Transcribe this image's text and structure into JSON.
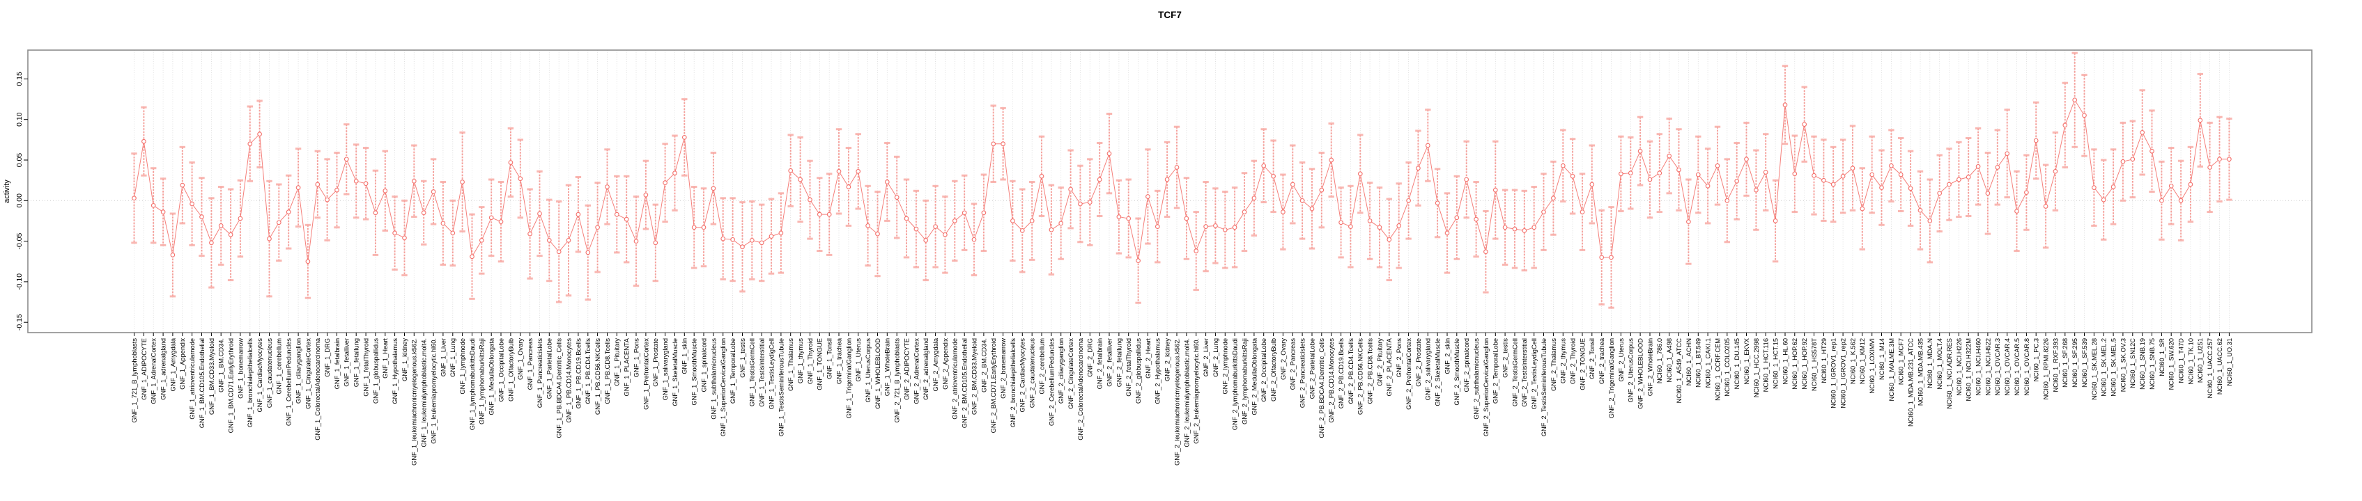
{
  "page": {
    "title": "TCF7"
  },
  "chart_data": {
    "type": "line",
    "title": "TCF7",
    "ylabel": "activity",
    "xlabel": "",
    "ylim": [
      -0.163,
      0.185
    ],
    "ytick_labels": [
      "0.15",
      "0.10",
      "0.05",
      "0.00",
      "-0.05",
      "-0.10",
      "-0.15"
    ],
    "grid": "vertical dotted gridline per category, dotted horizontal line at 0",
    "legend_position": "none",
    "marker": "open-circle with error bars",
    "colors": {
      "series": "#f4716c",
      "error_bar": "#f58a84",
      "error_cap": "#f8aba5",
      "gridline": "#d9d9d9",
      "zero_line": "#c9c9c9",
      "box": "#8c8c8c",
      "tick": "#000000",
      "text": "#000000",
      "background": "#ffffff"
    },
    "categories": [
      "GNF_1_721_B_lymphoblasts",
      "GNF_1_ADIPOCYTE",
      "GNF_1_AdrenalCortex",
      "GNF_1_adrenalgland",
      "GNF_1_Amygdala",
      "GNF_1_Appendix",
      "GNF_1_atrioventricularnode",
      "GNF_1_BM.CD105.Endothelial",
      "GNF_1_BM.CD33.Myeloid",
      "GNF_1_BM.CD34.",
      "GNF_1_BM.CD71.EarlyErythroid",
      "GNF_1_bonemarrow",
      "GNF_1_bronchialepithelialcells",
      "GNF_1_CardiacMyocytes",
      "GNF_1_caudatenucleus",
      "GNF_1_cerebellum",
      "GNF_1_CerebellumPeduncles",
      "GNF_1_ciliaryganglion",
      "GNF_1_CingulateCortex",
      "GNF_1_ColorectalAdenocarcinoma",
      "GNF_1_DRG",
      "GNF_1_fetalbrain",
      "GNF_1_fetalliver",
      "GNF_1_fetallung",
      "GNF_1_fetalThyroid",
      "GNF_1_globuspallidus",
      "GNF_1_Heart",
      "GNF_1_Hypothalamus",
      "GNF_1_kidney",
      "GNF_1_leukemiachronicmyelogenous.k562.",
      "GNF_1_leukemialymphoblastic.molt4.",
      "GNF_1_leukemiapromyelocytic.hl60.",
      "GNF_1_Liver",
      "GNF_1_Lung",
      "GNF_1_lymphnode",
      "GNF_1_lymphomaburkittsDaudi",
      "GNF_1_lymphomaburkittsRaji",
      "GNF_1_MedullaOblongata",
      "GNF_1_OccipitalLobe",
      "GNF_1_OlfactoryBulb",
      "GNF_1_Ovary",
      "GNF_1_Pancreas",
      "GNF_1_Pancreaticislets",
      "GNF_1_ParietalLobe",
      "GNF_1_PB.BDCA4.Dentritic_Cells",
      "GNF_1_PB.CD14.Monocytes",
      "GNF_1_PB.CD19.Bcells",
      "GNF_1_PB.CD4.Tcells",
      "GNF_1_PB.CD56.NKCells",
      "GNF_1_PB.CD8.Tcells",
      "GNF_1_Pituitary",
      "GNF_1_PLACENTA",
      "GNF_1_Pons",
      "GNF_1_PrefrontalCortex",
      "GNF_1_Prostate",
      "GNF_1_salivarygland",
      "GNF_1_SkeletalMuscle",
      "GNF_1_skin",
      "GNF_1_SmoothMuscle",
      "GNF_1_spinalcord",
      "GNF_1_subthalamicnucleus",
      "GNF_1_SuperiorCervicalGanglion",
      "GNF_1_TemporalLobe",
      "GNF_1_testis",
      "GNF_1_TestisGermCell",
      "GNF_1_TestisInterstitial",
      "GNF_1_TestisLeydigCell",
      "GNF_1_TestisSeminiferousTubule",
      "GNF_1_Thalamus",
      "GNF_1_thymus",
      "GNF_1_Thyroid",
      "GNF_1_TONGUE",
      "GNF_1_Tonsil",
      "GNF_1_trachea",
      "GNF_1_TrigeminalGanglion",
      "GNF_1_Uterus",
      "GNF_1_UterusCorpus",
      "GNF_1_WHOLEBLOOD",
      "GNF_1_WholeBrain",
      "GNF_2_721_B_lymphoblasts",
      "GNF_2_ADIPOCYTE",
      "GNF_2_AdrenalCortex",
      "GNF_2_adrenalgland",
      "GNF_2_Amygdala",
      "GNF_2_Appendix",
      "GNF_2_atrioventricularnode",
      "GNF_2_BM.CD105.Endothelial",
      "GNF_2_BM.CD33.Myeloid",
      "GNF_2_BM.CD34.",
      "GNF_2_BM.CD71.EarlyErythroid",
      "GNF_2_bonemarrow",
      "GNF_2_bronchialepithelialcells",
      "GNF_2_CardiacMyocytes",
      "GNF_2_caudatenucleus",
      "GNF_2_cerebellum",
      "GNF_2_CerebellumPeduncles",
      "GNF_2_ciliaryganglion",
      "GNF_2_CingulateCortex",
      "GNF_2_ColorectalAdenocarcinoma",
      "GNF_2_DRG",
      "GNF_2_fetalbrain",
      "GNF_2_fetalliver",
      "GNF_2_fetallung",
      "GNF_2_fetalThyroid",
      "GNF_2_globuspallidus",
      "GNF_2_Heart",
      "GNF_2_Hypothalamus",
      "GNF_2_kidney",
      "GNF_2_leukemiachronicmyelogenous.k562.",
      "GNF_2_leukemialymphoblastic.molt4.",
      "GNF_2_leukemiapromyelocytic.hl60.",
      "GNF_2_Liver",
      "GNF_2_Lung",
      "GNF_2_lymphnode",
      "GNF_2_lymphomaburkittsDaudi",
      "GNF_2_lymphomaburkittsRaji",
      "GNF_2_MedullaOblongata",
      "GNF_2_OccipitalLobe",
      "GNF_2_OlfactoryBulb",
      "GNF_2_Ovary",
      "GNF_2_Pancreas",
      "GNF_2_Pancreaticislets",
      "GNF_2_ParietalLobe",
      "GNF_2_PB.BDCA4.Dentritic_Cells",
      "GNF_2_PB.CD14.Monocytes",
      "GNF_2_PB.CD19.Bcells",
      "GNF_2_PB.CD4.Tcells",
      "GNF_2_PB.CD56.NKCells",
      "GNF_2_PB.CD8.Tcells",
      "GNF_2_Pituitary",
      "GNF_2_PLACENTA",
      "GNF_2_Pons",
      "GNF_2_PrefrontalCortex",
      "GNF_2_Prostate",
      "GNF_2_salivarygland",
      "GNF_2_SkeletalMuscle",
      "GNF_2_skin",
      "GNF_2_SmoothMuscle",
      "GNF_2_spinalcord",
      "GNF_2_subthalamicnucleus",
      "GNF_2_SuperiorCervicalGanglion",
      "GNF_2_TemporalLobe",
      "GNF_2_testis",
      "GNF_2_TestisGermCell",
      "GNF_2_TestisInterstitial",
      "GNF_2_TestisLeydigCell",
      "GNF_2_TestisSeminiferousTubule",
      "GNF_2_Thalamus",
      "GNF_2_thymus",
      "GNF_2_Thyroid",
      "GNF_2_TONGUE",
      "GNF_2_Tonsil",
      "GNF_2_trachea",
      "GNF_2_TrigeminalGanglion",
      "GNF_2_Uterus",
      "GNF_2_UterusCorpus",
      "GNF_2_WHOLEBLOOD",
      "GNF_2_WholeBrain",
      "NCI60_1_786.0",
      "NCI60_1_A498",
      "NCI60_1_A549_ATCC",
      "NCI60_1_ACHN",
      "NCI60_1_BT.549",
      "NCI60_1_CAKI.1",
      "NCI60_1_CCRF.CEM",
      "NCI60_1_COLO205",
      "NCI60_1_DU.145",
      "NCI60_1_EKVX",
      "NCI60_1_HCC.2998",
      "NCI60_1_HCT.116",
      "NCI60_1_HCT.15",
      "NCI60_1_HL.60",
      "NCI60_1_HOP.62",
      "NCI60_1_HOP.92",
      "NCI60_1_HS578T",
      "NCI60_1_HT29",
      "NCI60_1_IGROV1_rep1",
      "NCI60_1_IGROV1_rep2",
      "NCI60_1_K.562",
      "NCI60_1_KM12",
      "NCI60_1_LOXIMVI",
      "NCI60_1_M14",
      "NCI60_1_MALME.3M",
      "NCI60_1_MCF7",
      "NCI60_1_MDA.MB.231_ATCC",
      "NCI60_1_MDA.MB.435",
      "NCI60_1_MDA.N",
      "NCI60_1_MOLT.4",
      "NCI60_1_NCI.ADR.RES",
      "NCI60_1_NCI.H226",
      "NCI60_1_NCI.H322M",
      "NCI60_1_NCI.H460",
      "NCI60_1_NCI.H522",
      "NCI60_1_OVCAR.3",
      "NCI60_1_OVCAR.4",
      "NCI60_1_OVCAR.5",
      "NCI60_1_OVCAR.8",
      "NCI60_1_PC.3",
      "NCI60_1_RPMI.8226",
      "NCI60_1_RXF.393",
      "NCI60_1_SF.268",
      "NCI60_1_SF.295",
      "NCI60_1_SF.539",
      "NCI60_1_SK.MEL.28",
      "NCI60_1_SK.MEL.2",
      "NCI60_1_SK.MEL.5",
      "NCI60_1_SK.OV.3",
      "NCI60_1_SN12C",
      "NCI60_1_SNB.19",
      "NCI60_1_SNB.75",
      "NCI60_1_SR",
      "NCI60_1_SW.620",
      "NCI60_1_T47D",
      "NCI60_1_TK.10",
      "NCI60_1_U251",
      "NCI60_1_UACC.257",
      "NCI60_1_UACC.62",
      "NCI60_1_UO.31"
    ],
    "values": [
      0.003,
      0.073,
      -0.006,
      -0.014,
      -0.067,
      0.019,
      -0.004,
      -0.02,
      -0.052,
      -0.031,
      -0.042,
      -0.022,
      0.07,
      0.082,
      -0.047,
      -0.027,
      -0.014,
      0.016,
      -0.075,
      0.02,
      0.001,
      0.013,
      0.051,
      0.024,
      0.021,
      -0.015,
      0.012,
      -0.04,
      -0.046,
      0.024,
      -0.015,
      0.011,
      -0.028,
      -0.04,
      0.023,
      -0.069,
      -0.049,
      -0.021,
      -0.026,
      0.047,
      0.027,
      -0.041,
      -0.016,
      -0.049,
      -0.063,
      -0.049,
      -0.017,
      -0.064,
      -0.033,
      0.017,
      -0.017,
      -0.023,
      -0.05,
      0.007,
      -0.052,
      0.022,
      0.034,
      0.078,
      -0.033,
      -0.033,
      0.015,
      -0.047,
      -0.048,
      -0.057,
      -0.049,
      -0.052,
      -0.044,
      -0.04,
      0.037,
      0.026,
      0.001,
      -0.017,
      -0.017,
      0.036,
      0.017,
      0.036,
      -0.031,
      -0.041,
      0.023,
      0.004,
      -0.022,
      -0.035,
      -0.049,
      -0.032,
      -0.042,
      -0.025,
      -0.015,
      -0.048,
      -0.015,
      0.07,
      0.07,
      -0.025,
      -0.037,
      -0.025,
      0.03,
      -0.036,
      -0.028,
      0.014,
      -0.004,
      -0.002,
      0.026,
      0.058,
      -0.02,
      -0.022,
      -0.074,
      0.005,
      -0.032,
      0.026,
      0.041,
      -0.022,
      -0.062,
      -0.032,
      -0.031,
      -0.036,
      -0.033,
      -0.014,
      0.003,
      0.043,
      0.03,
      -0.014,
      0.02,
      0,
      -0.01,
      0.013,
      0.05,
      -0.027,
      -0.032,
      0.033,
      -0.025,
      -0.033,
      -0.048,
      -0.031,
      0,
      0.04,
      0.068,
      -0.003,
      -0.04,
      -0.021,
      0.026,
      -0.023,
      -0.063,
      0.013,
      -0.033,
      -0.035,
      -0.037,
      -0.033,
      -0.014,
      0.003,
      0.043,
      0.03,
      -0.014,
      0.02,
      -0.07,
      -0.07,
      0.033,
      0.034,
      0.061,
      0.026,
      0.034,
      0.055,
      0.038,
      -0.026,
      0.032,
      0.018,
      0.043,
      0,
      0.024,
      0.051,
      0.013,
      0.035,
      -0.025,
      0.118,
      0.033,
      0.094,
      0.031,
      0.025,
      0.02,
      0.03,
      0.04,
      -0.01,
      0.032,
      0.016,
      0.043,
      0.032,
      0.015,
      -0.012,
      -0.025,
      0.009,
      0.02,
      0.026,
      0.029,
      0.042,
      0.009,
      0.041,
      0.058,
      -0.013,
      0.01,
      0.074,
      -0.007,
      0.036,
      0.093,
      0.124,
      0.105,
      0.016,
      0.001,
      0.017,
      0.048,
      0.051,
      0.084,
      0.061,
      0,
      0.018,
      0,
      0.02,
      0.099,
      0.041,
      0.051,
      0.051
    ],
    "errors": [
      0.055,
      0.042,
      0.046,
      0.041,
      0.051,
      0.047,
      0.051,
      0.048,
      0.055,
      0.048,
      0.056,
      0.047,
      0.046,
      0.041,
      0.071,
      0.047,
      0.045,
      0.048,
      0.045,
      0.041,
      0.05,
      0.046,
      0.043,
      0.045,
      0.044,
      0.052,
      0.049,
      0.045,
      0.046,
      0.044,
      0.039,
      0.04,
      0.051,
      0.04,
      0.061,
      0.052,
      0.041,
      0.047,
      0.049,
      0.042,
      0.048,
      0.055,
      0.052,
      0.05,
      0.062,
      0.068,
      0.046,
      0.058,
      0.055,
      0.046,
      0.047,
      0.053,
      0.055,
      0.042,
      0.047,
      0.048,
      0.046,
      0.047,
      0.05,
      0.048,
      0.044,
      0.05,
      0.051,
      0.055,
      0.048,
      0.047,
      0.046,
      0.049,
      0.044,
      0.052,
      0.048,
      0.045,
      0.05,
      0.052,
      0.048,
      0.046,
      0.049,
      0.052,
      0.048,
      0.05,
      0.048,
      0.047,
      0.049,
      0.05,
      0.047,
      0.049,
      0.046,
      0.044,
      0.047,
      0.047,
      0.044,
      0.049,
      0.051,
      0.048,
      0.049,
      0.055,
      0.044,
      0.048,
      0.047,
      0.053,
      0.045,
      0.049,
      0.045,
      0.048,
      0.052,
      0.058,
      0.044,
      0.046,
      0.05,
      0.05,
      0.048,
      0.055,
      0.046,
      0.047,
      0.049,
      0.048,
      0.046,
      0.045,
      0.044,
      0.046,
      0.048,
      0.047,
      0.049,
      0.046,
      0.045,
      0.043,
      0.05,
      0.048,
      0.047,
      0.049,
      0.05,
      0.052,
      0.047,
      0.046,
      0.044,
      0.042,
      0.049,
      0.051,
      0.047,
      0.046,
      0.05,
      0.06,
      0.046,
      0.048,
      0.049,
      0.05,
      0.047,
      0.045,
      0.044,
      0.046,
      0.047,
      0.048,
      0.058,
      0.062,
      0.046,
      0.044,
      0.042,
      0.047,
      0.048,
      0.046,
      0.05,
      0.052,
      0.047,
      0.046,
      0.048,
      0.051,
      0.047,
      0.045,
      0.049,
      0.047,
      0.05,
      0.048,
      0.047,
      0.046,
      0.048,
      0.05,
      0.046,
      0.045,
      0.052,
      0.05,
      0.047,
      0.046,
      0.044,
      0.045,
      0.046,
      0.048,
      0.051,
      0.047,
      0.044,
      0.046,
      0.048,
      0.047,
      0.05,
      0.046,
      0.054,
      0.049,
      0.046,
      0.047,
      0.051,
      0.048,
      0.052,
      0.058,
      0.05,
      0.047,
      0.049,
      0.046,
      0.048,
      0.047,
      0.052,
      0.05,
      0.048,
      0.047,
      0.049,
      0.046,
      0.057,
      0.055,
      0.052,
      0.05
    ]
  }
}
